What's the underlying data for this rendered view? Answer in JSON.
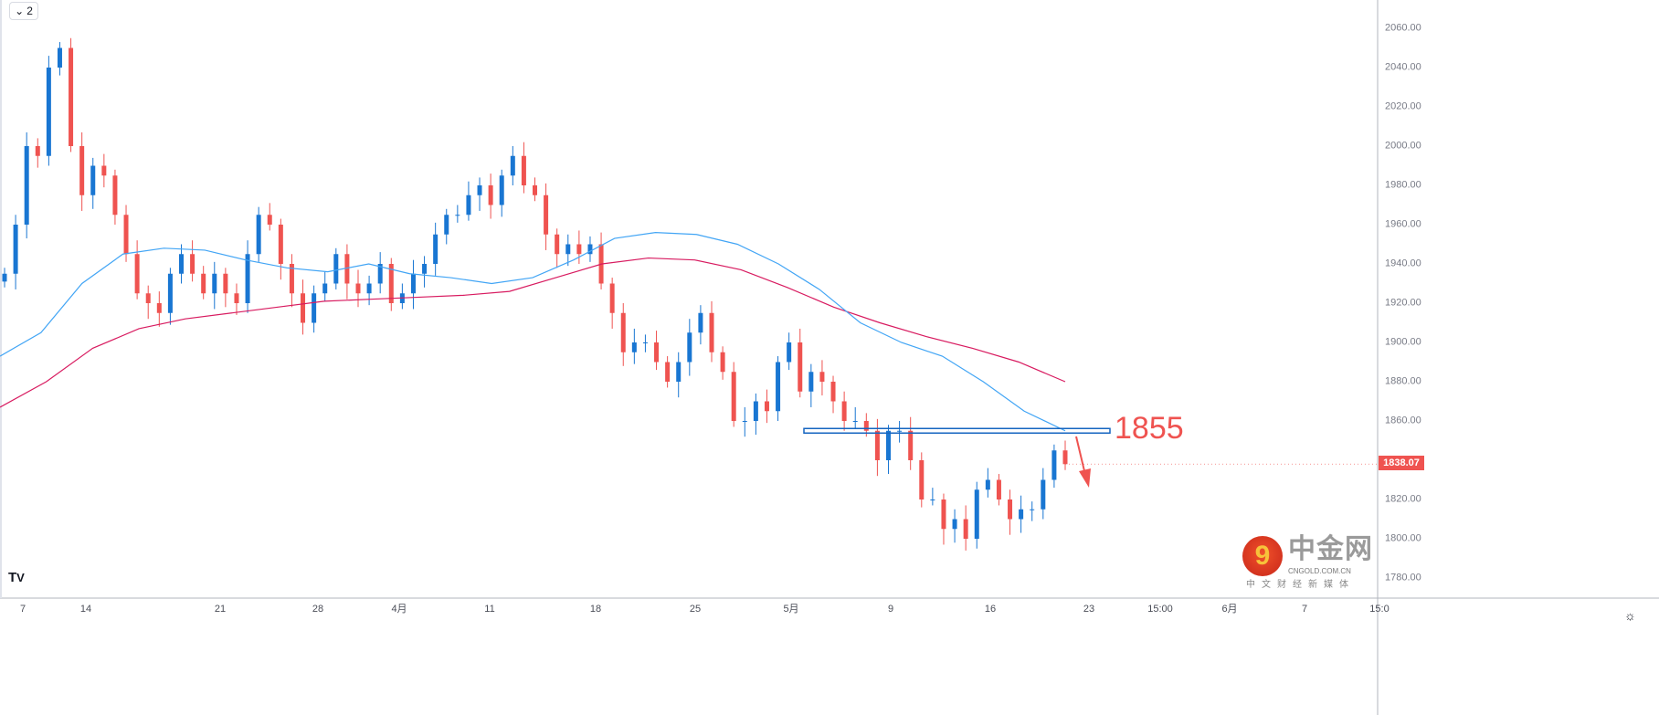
{
  "toolbar": {
    "interval_count": "2",
    "chevron_icon": "chevron-down-icon"
  },
  "colors": {
    "up": "#1976d2",
    "down": "#ef5350",
    "ma_fast": "#42a5f5",
    "ma_slow": "#d81b60",
    "level": "#1565c0",
    "annotation": "#ef5350"
  },
  "chart_data": {
    "type": "candlestick",
    "title": "",
    "ylim": [
      1780,
      2070
    ],
    "y_ticks": [
      "2060.00",
      "2040.00",
      "2020.00",
      "2000.00",
      "1980.00",
      "1960.00",
      "1940.00",
      "1920.00",
      "1900.00",
      "1880.00",
      "1860.00",
      "1820.00",
      "1800.00",
      "1780.00"
    ],
    "x_ticks": [
      "7",
      "14",
      "21",
      "28",
      "4月",
      "11",
      "18",
      "25",
      "5月",
      "9",
      "16",
      "23",
      "15:00",
      "6月",
      "7",
      "15:0"
    ],
    "closes": [
      1935,
      1960,
      2000,
      1995,
      2040,
      2050,
      2000,
      1975,
      1990,
      1985,
      1965,
      1945,
      1925,
      1920,
      1915,
      1935,
      1945,
      1935,
      1925,
      1935,
      1925,
      1920,
      1945,
      1965,
      1960,
      1940,
      1925,
      1910,
      1925,
      1930,
      1945,
      1930,
      1925,
      1930,
      1940,
      1920,
      1925,
      1935,
      1940,
      1955,
      1965,
      1965,
      1975,
      1980,
      1970,
      1985,
      1995,
      1980,
      1975,
      1955,
      1945,
      1950,
      1945,
      1950,
      1930,
      1915,
      1895,
      1900,
      1900,
      1890,
      1880,
      1890,
      1905,
      1915,
      1895,
      1885,
      1860,
      1860,
      1870,
      1865,
      1890,
      1900,
      1875,
      1885,
      1880,
      1870,
      1860,
      1860,
      1855,
      1840,
      1855,
      1855,
      1840,
      1820,
      1820,
      1805,
      1810,
      1800,
      1825,
      1830,
      1820,
      1810,
      1815,
      1815,
      1830,
      1845,
      1838
    ],
    "ma_fast": [
      1893,
      1905,
      1930,
      1945,
      1948,
      1947,
      1942,
      1938,
      1936,
      1940,
      1935,
      1933,
      1930,
      1933,
      1942,
      1953,
      1956,
      1955,
      1950,
      1940,
      1927,
      1910,
      1900,
      1893,
      1880,
      1865,
      1855
    ],
    "ma_slow": [
      1867,
      1880,
      1897,
      1907,
      1912,
      1915,
      1918,
      1921,
      1922,
      1923,
      1924,
      1926,
      1933,
      1940,
      1943,
      1942,
      1937,
      1928,
      1918,
      1910,
      1903,
      1897,
      1890,
      1880
    ],
    "last_price": "1838.07",
    "level": {
      "value": 1855,
      "label": "1855"
    },
    "arrow_direction": "down"
  },
  "watermark": {
    "logo_text": "中金网",
    "url": "CNGOLD.COM.CN",
    "sub": "中文财经新媒体"
  },
  "branding": {
    "tv_logo": "TV"
  },
  "settings_icon": "gear-icon"
}
